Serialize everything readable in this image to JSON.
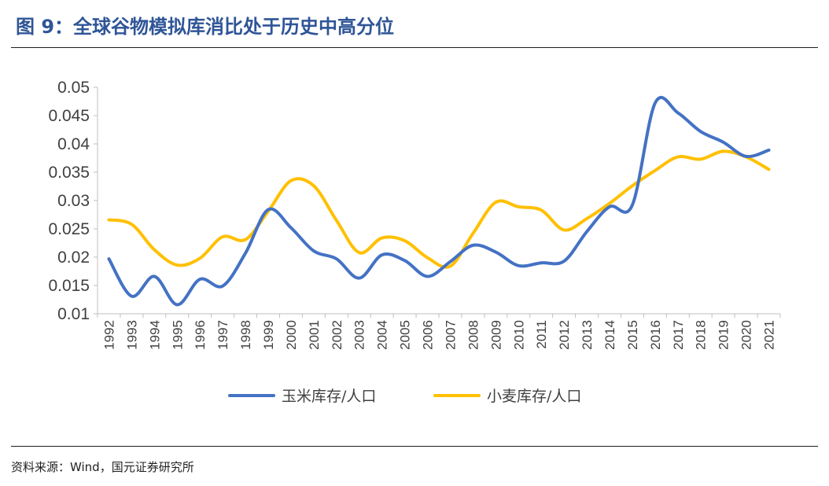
{
  "header": {
    "title": "图 9：全球谷物模拟库消比处于历史中高分位"
  },
  "footer": {
    "source": "资料来源：Wind，国元证券研究所"
  },
  "chart_data": {
    "type": "line",
    "title": "",
    "xlabel": "",
    "ylabel": "",
    "x": [
      "1992",
      "1993",
      "1994",
      "1995",
      "1996",
      "1997",
      "1998",
      "1999",
      "2000",
      "2001",
      "2002",
      "2003",
      "2004",
      "2005",
      "2006",
      "2007",
      "2008",
      "2009",
      "2010",
      "2011",
      "2012",
      "2013",
      "2014",
      "2015",
      "2016",
      "2017",
      "2018",
      "2019",
      "2020",
      "2021"
    ],
    "ylim": [
      0.01,
      0.05
    ],
    "yticks": [
      "0.01",
      "0.015",
      "0.02",
      "0.025",
      "0.03",
      "0.035",
      "0.04",
      "0.045",
      "0.05"
    ],
    "grid": false,
    "legend_position": "bottom",
    "series": [
      {
        "name": "玉米库存/人口",
        "color": "#4472c4",
        "values": [
          0.0197,
          0.0131,
          0.0166,
          0.0116,
          0.0161,
          0.0149,
          0.0207,
          0.0284,
          0.0252,
          0.0211,
          0.0197,
          0.0163,
          0.0204,
          0.0194,
          0.0166,
          0.0192,
          0.0221,
          0.0209,
          0.0185,
          0.019,
          0.0193,
          0.0245,
          0.0289,
          0.0292,
          0.0472,
          0.0455,
          0.0422,
          0.0403,
          0.0378,
          0.0389
        ]
      },
      {
        "name": "小麦库存/人口",
        "color": "#ffc000",
        "values": [
          0.0266,
          0.0258,
          0.0213,
          0.0186,
          0.0198,
          0.0236,
          0.0231,
          0.0281,
          0.0335,
          0.0326,
          0.0265,
          0.0208,
          0.0234,
          0.0229,
          0.0199,
          0.0184,
          0.0242,
          0.0297,
          0.0289,
          0.0283,
          0.0248,
          0.0268,
          0.0295,
          0.0326,
          0.0353,
          0.0377,
          0.0373,
          0.0387,
          0.0377,
          0.0355
        ]
      }
    ]
  }
}
